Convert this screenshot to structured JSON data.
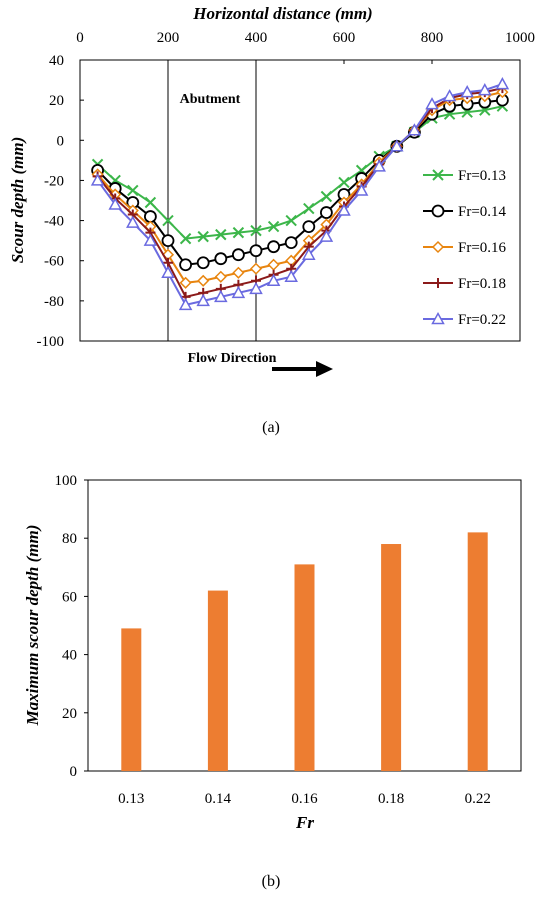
{
  "chart_data": [
    {
      "panel_label": "(a)",
      "type": "line",
      "title": "",
      "xlabel": "Horizontal distance (mm)",
      "ylabel": "Scour depth (mm)",
      "xlim": [
        0,
        1000
      ],
      "ylim": [
        -100,
        40
      ],
      "x_ticks": [
        "0",
        "200",
        "400",
        "600",
        "800",
        "1000"
      ],
      "y_ticks": [
        "40",
        "20",
        "0",
        "-20",
        "-40",
        "-60",
        "-80",
        "-100"
      ],
      "x_axis_position": "top",
      "grid": false,
      "legend_position": "right",
      "annotations": {
        "abutment": "Abutment",
        "flow": "Flow Direction"
      },
      "abutment_bounds_x": [
        200,
        400
      ],
      "x": [
        40,
        80,
        120,
        160,
        200,
        240,
        280,
        320,
        360,
        400,
        440,
        480,
        520,
        560,
        600,
        640,
        680,
        720,
        760,
        800,
        840,
        880,
        920,
        960
      ],
      "series": [
        {
          "name": "Fr=0.13",
          "color": "#3cb64a",
          "marker": "x",
          "values": [
            -12,
            -20,
            -25,
            -31,
            -40,
            -49,
            -48,
            -47,
            -46,
            -45,
            -43,
            -40,
            -34,
            -28,
            -21,
            -15,
            -8,
            -3,
            4,
            11,
            13,
            14,
            15,
            17
          ]
        },
        {
          "name": "Fr=0.14",
          "color": "#000000",
          "marker": "circle",
          "values": [
            -15,
            -24,
            -31,
            -38,
            -50,
            -62,
            -61,
            -59,
            -57,
            -55,
            -53,
            -51,
            -43,
            -36,
            -27,
            -19,
            -10,
            -3,
            4,
            13,
            17,
            18,
            19,
            20
          ]
        },
        {
          "name": "Fr=0.16",
          "color": "#e8850f",
          "marker": "diamond",
          "values": [
            -17,
            -27,
            -35,
            -43,
            -57,
            -71,
            -70,
            -68,
            -66,
            -64,
            -62,
            -60,
            -50,
            -42,
            -31,
            -22,
            -11,
            -3,
            5,
            15,
            20,
            21,
            22,
            24
          ]
        },
        {
          "name": "Fr=0.18",
          "color": "#8b1a1a",
          "marker": "plus",
          "values": [
            -18,
            -29,
            -37,
            -46,
            -61,
            -78,
            -76,
            -74,
            -72,
            -70,
            -67,
            -64,
            -53,
            -45,
            -33,
            -23,
            -12,
            -3,
            5,
            16,
            21,
            23,
            24,
            26
          ]
        },
        {
          "name": "Fr=0.22",
          "color": "#6a6ae0",
          "marker": "triangle",
          "values": [
            -20,
            -32,
            -41,
            -50,
            -66,
            -82,
            -80,
            -78,
            -76,
            -74,
            -70,
            -68,
            -57,
            -48,
            -35,
            -25,
            -13,
            -3,
            5,
            18,
            22,
            24,
            25,
            28
          ]
        }
      ]
    },
    {
      "panel_label": "(b)",
      "type": "bar",
      "title": "",
      "xlabel": "Fr",
      "ylabel": "Maximum scour depth (mm)",
      "ylim": [
        0,
        100
      ],
      "y_ticks": [
        "100",
        "80",
        "60",
        "40",
        "20",
        "0"
      ],
      "categories": [
        "0.13",
        "0.14",
        "0.16",
        "0.18",
        "0.22"
      ],
      "values": [
        49,
        62,
        71,
        78,
        82
      ],
      "bar_color": "#ed7d31",
      "grid": false
    }
  ]
}
